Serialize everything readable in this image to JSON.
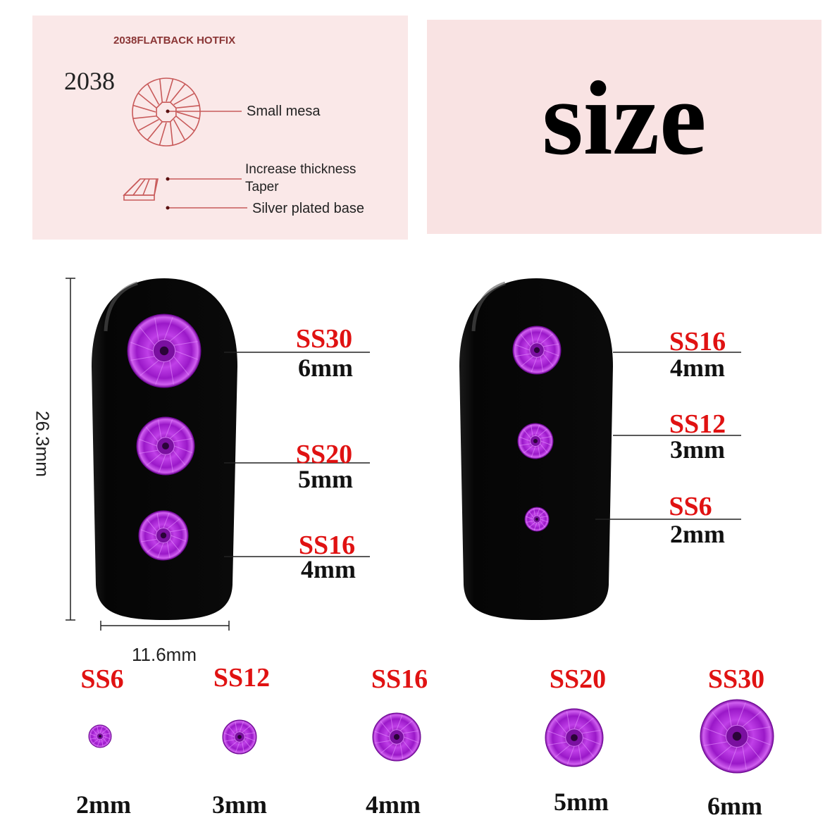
{
  "diagram": {
    "header": "2038FLATBACK HOTFIX",
    "model": "2038",
    "callouts": [
      "Small mesa",
      "Increase thickness",
      "Taper",
      "Silver plated base"
    ],
    "line_color": "#c85a5a"
  },
  "title": "size",
  "nail": {
    "height_label": "26.3mm",
    "width_label": "11.6mm",
    "left": [
      {
        "code": "SS30",
        "size": "6mm"
      },
      {
        "code": "SS20",
        "size": "5mm"
      },
      {
        "code": "SS16",
        "size": "4mm"
      }
    ],
    "right": [
      {
        "code": "SS16",
        "size": "4mm"
      },
      {
        "code": "SS12",
        "size": "3mm"
      },
      {
        "code": "SS6",
        "size": "2mm"
      }
    ]
  },
  "sizes": [
    {
      "code": "SS6",
      "size": "2mm"
    },
    {
      "code": "SS12",
      "size": "3mm"
    },
    {
      "code": "SS16",
      "size": "4mm"
    },
    {
      "code": "SS20",
      "size": "5mm"
    },
    {
      "code": "SS30",
      "size": "6mm"
    }
  ],
  "colors": {
    "code_red": "#e01212",
    "gem_purple": "#b21fd6",
    "nail_black": "#0c0c0c",
    "panel_pink": "#fae8e8"
  }
}
